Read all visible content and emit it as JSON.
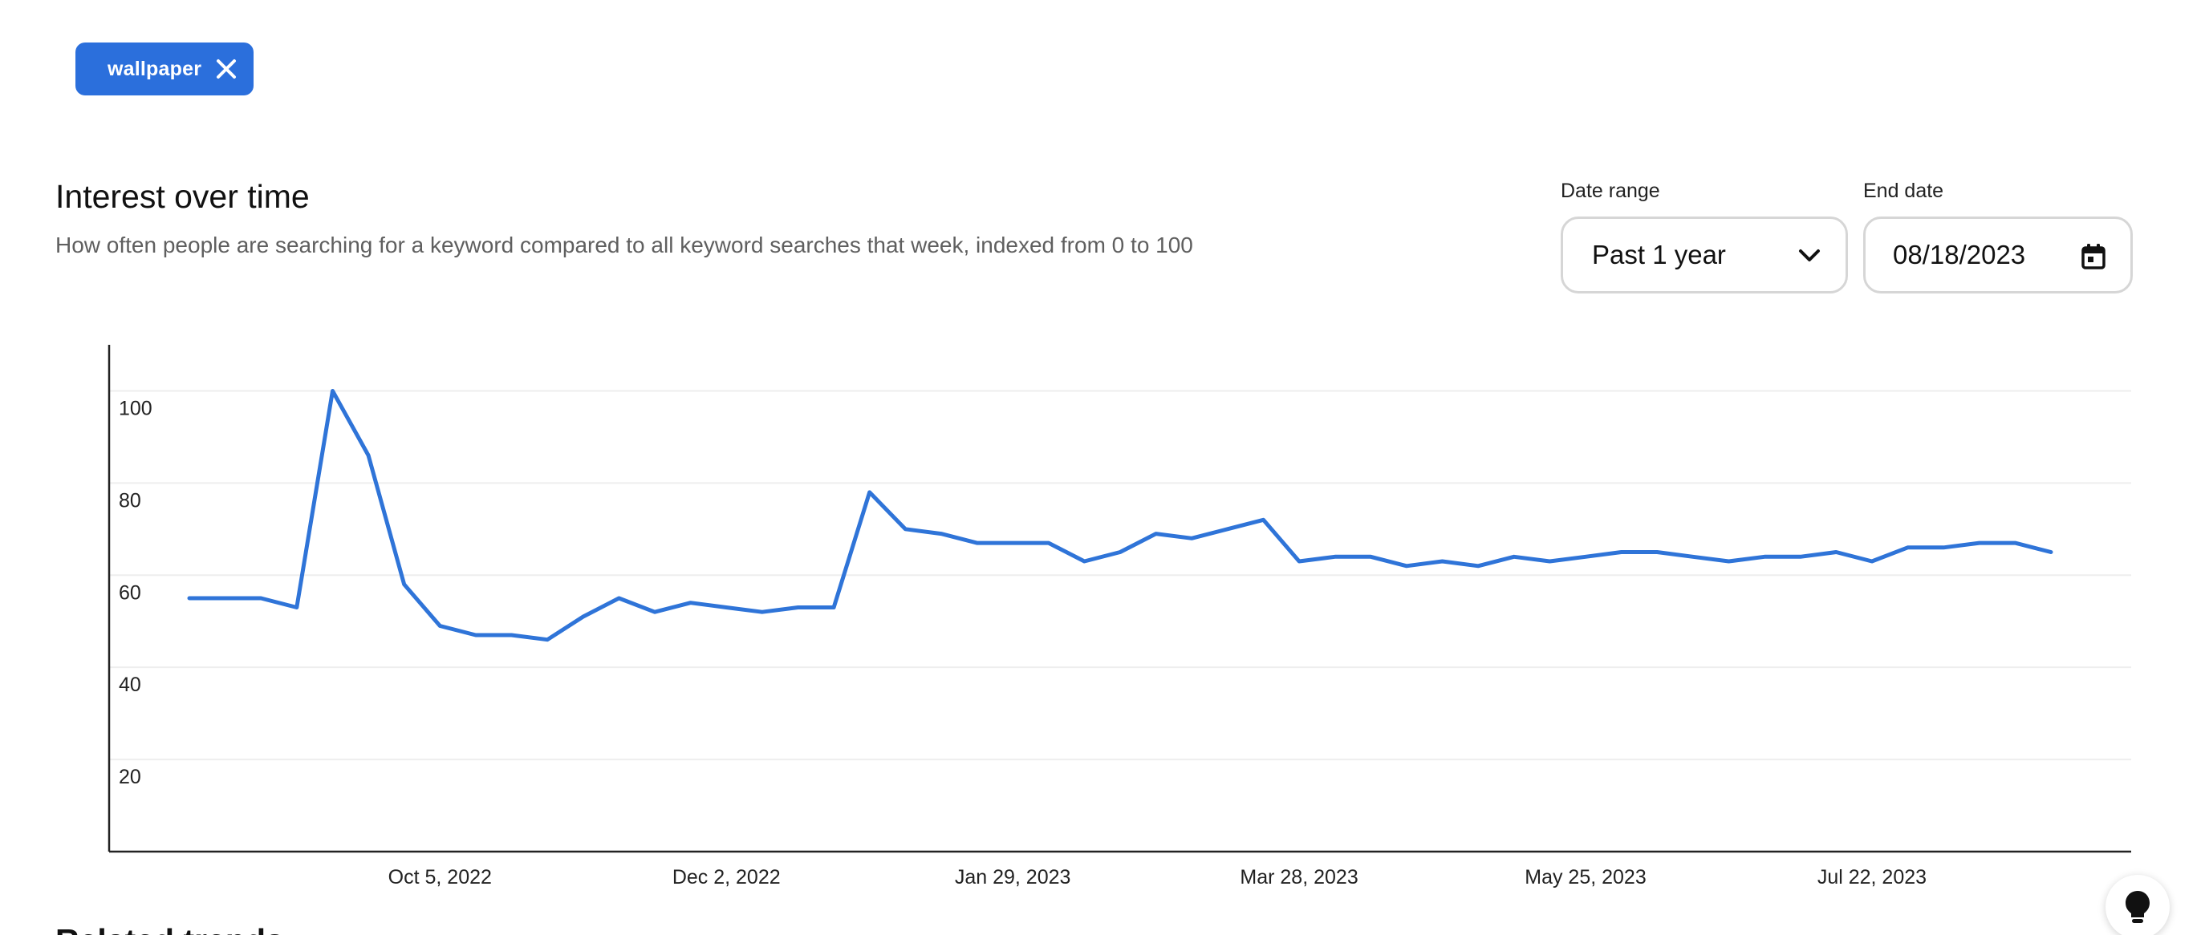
{
  "chip": {
    "label": "wallpaper",
    "icon": "close-icon"
  },
  "section": {
    "title": "Interest over time",
    "subtitle": "How often people are searching for a keyword compared to all keyword searches that week, indexed from 0 to 100"
  },
  "controls": {
    "date_range_label": "Date range",
    "date_range_value": "Past 1 year",
    "date_range_icon": "chevron-down-icon",
    "end_date_label": "End date",
    "end_date_value": "08/18/2023",
    "end_date_icon": "calendar-icon"
  },
  "tip_button": {
    "icon": "lightbulb-icon"
  },
  "next_section": {
    "title": "Related trends"
  },
  "colors": {
    "accent": "#2b6fdc",
    "line": "#2f74d8",
    "gridline": "#eeeeee",
    "axis": "#222222"
  },
  "chart_data": {
    "type": "line",
    "title": "Interest over time",
    "xlabel": "",
    "ylabel": "",
    "ylim": [
      0,
      110
    ],
    "yticks": [
      20,
      40,
      60,
      80,
      100
    ],
    "xticks": [
      "Oct 5, 2022",
      "Dec 2, 2022",
      "Jan 29, 2023",
      "Mar 28, 2023",
      "May 25, 2023",
      "Jul 22, 2023"
    ],
    "grid": true,
    "series": [
      {
        "name": "wallpaper",
        "values": [
          55,
          55,
          55,
          53,
          100,
          86,
          58,
          49,
          47,
          47,
          46,
          51,
          55,
          52,
          54,
          53,
          52,
          53,
          53,
          78,
          70,
          69,
          67,
          67,
          67,
          63,
          65,
          69,
          68,
          70,
          72,
          63,
          64,
          64,
          62,
          63,
          62,
          64,
          63,
          64,
          65,
          65,
          64,
          63,
          64,
          64,
          65,
          63,
          66,
          66,
          67,
          67,
          65
        ]
      }
    ]
  }
}
